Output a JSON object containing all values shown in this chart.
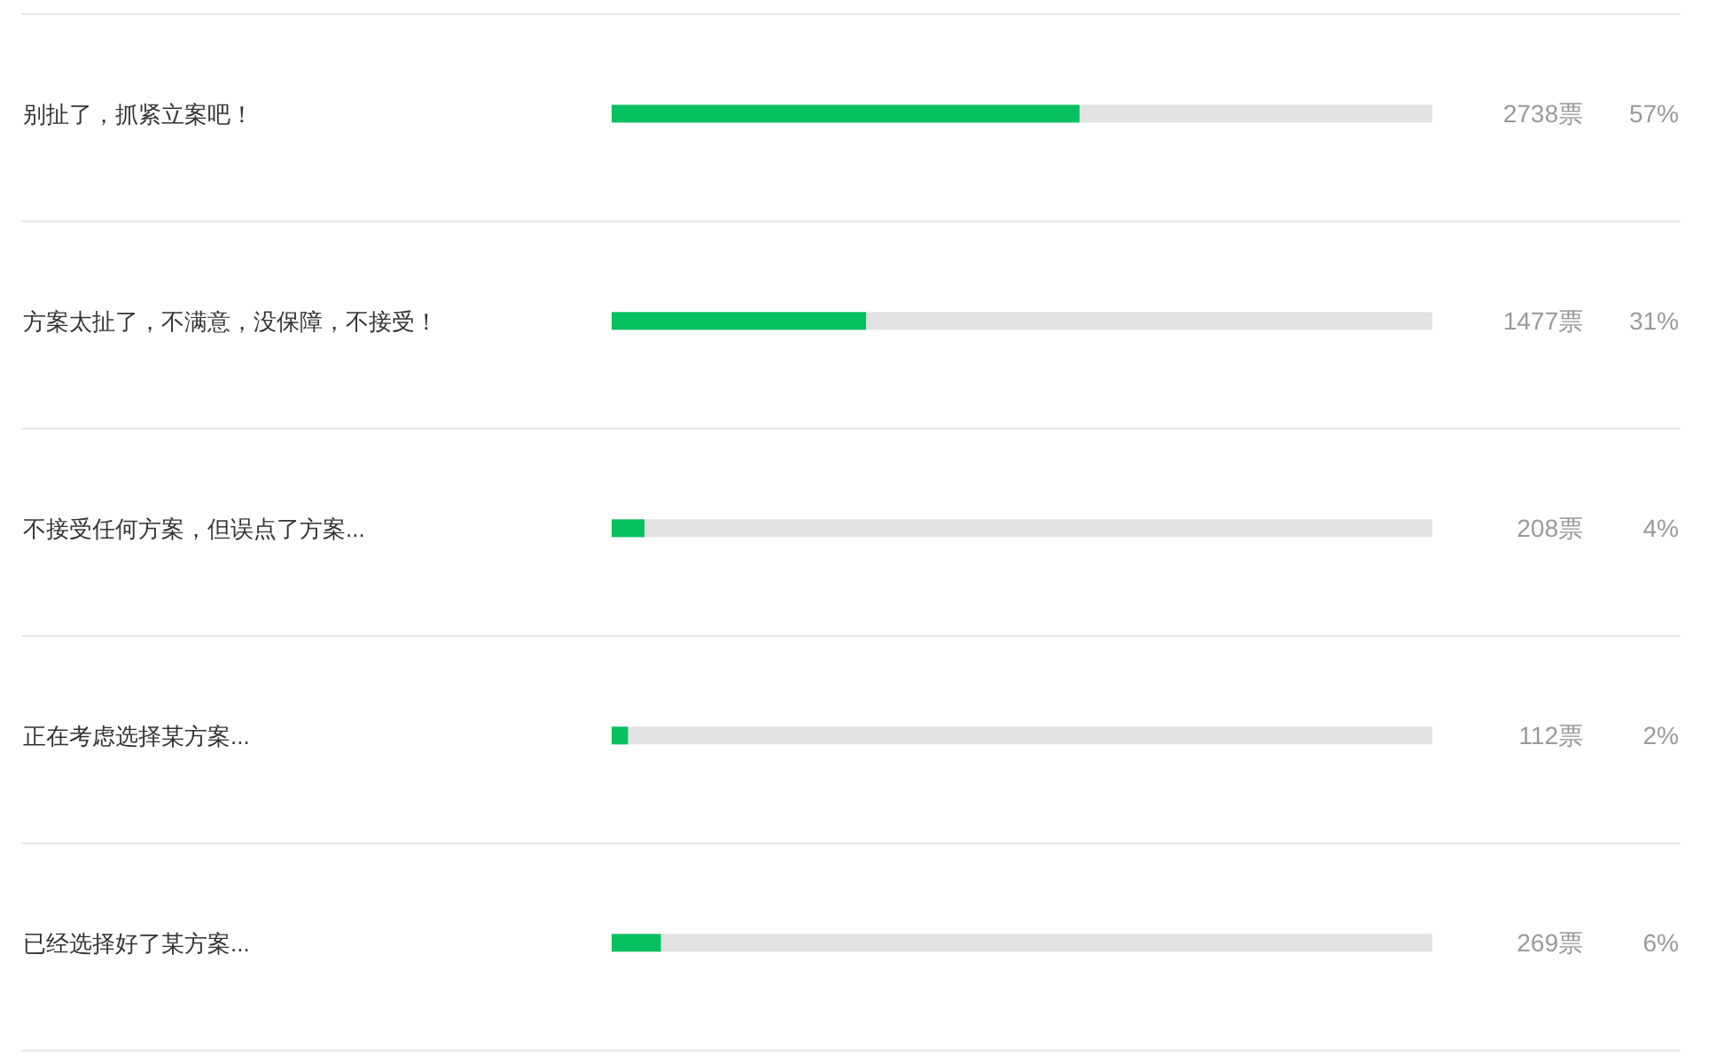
{
  "chart_data": {
    "type": "bar",
    "orientation": "horizontal",
    "categories": [
      "别扯了，抓紧立案吧！",
      "方案太扯了，不满意，没保障，不接受！",
      "不接受任何方案，但误点了方案...",
      "正在考虑选择某方案...",
      "已经选择好了某方案..."
    ],
    "values": [
      57,
      31,
      4,
      2,
      6
    ],
    "value_labels": [
      "57%",
      "31%",
      "4%",
      "2%",
      "6%"
    ],
    "color": "#07c160",
    "xlim": [
      0,
      100
    ],
    "grid": "y",
    "annotations": [
      "2738票",
      "1477票",
      "208票",
      "112票",
      "269票"
    ]
  }
}
